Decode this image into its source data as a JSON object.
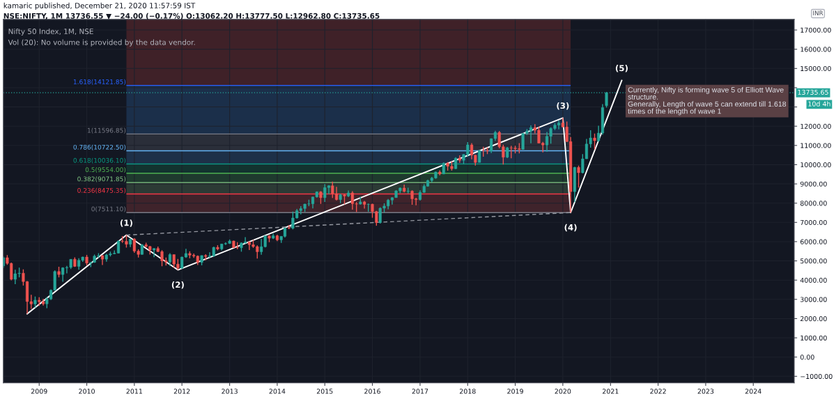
{
  "chart_data": {
    "type": "candlestick",
    "title": "kamaric published, December 21, 2020 11:57:59 IST",
    "subtitle": "NSE:NIFTY, 1M 13736.55 ▼ −24.00 (−0.17%) O:13062.20 H:13777.50 L:12962.80 C:13735.65",
    "x": [
      "2008-04",
      "2008-05",
      "2008-06",
      "2008-07",
      "2008-08",
      "2008-09",
      "2008-10",
      "2008-11",
      "2008-12",
      "2009-01",
      "2009-02",
      "2009-03",
      "2009-04",
      "2009-05",
      "2009-06",
      "2009-07",
      "2009-08",
      "2009-09",
      "2009-10",
      "2009-11",
      "2009-12",
      "2010-01",
      "2010-02",
      "2010-03",
      "2010-04",
      "2010-05",
      "2010-06",
      "2010-07",
      "2010-08",
      "2010-09",
      "2010-10",
      "2010-11",
      "2010-12",
      "2011-01",
      "2011-02",
      "2011-03",
      "2011-04",
      "2011-05",
      "2011-06",
      "2011-07",
      "2011-08",
      "2011-09",
      "2011-10",
      "2011-11",
      "2011-12",
      "2012-01",
      "2012-02",
      "2012-03",
      "2012-04",
      "2012-05",
      "2012-06",
      "2012-07",
      "2012-08",
      "2012-09",
      "2012-10",
      "2012-11",
      "2012-12",
      "2013-01",
      "2013-02",
      "2013-03",
      "2013-04",
      "2013-05",
      "2013-06",
      "2013-07",
      "2013-08",
      "2013-09",
      "2013-10",
      "2013-11",
      "2013-12",
      "2014-01",
      "2014-02",
      "2014-03",
      "2014-04",
      "2014-05",
      "2014-06",
      "2014-07",
      "2014-08",
      "2014-09",
      "2014-10",
      "2014-11",
      "2014-12",
      "2015-01",
      "2015-02",
      "2015-03",
      "2015-04",
      "2015-05",
      "2015-06",
      "2015-07",
      "2015-08",
      "2015-09",
      "2015-10",
      "2015-11",
      "2015-12",
      "2016-01",
      "2016-02",
      "2016-03",
      "2016-04",
      "2016-05",
      "2016-06",
      "2016-07",
      "2016-08",
      "2016-09",
      "2016-10",
      "2016-11",
      "2016-12",
      "2017-01",
      "2017-02",
      "2017-03",
      "2017-04",
      "2017-05",
      "2017-06",
      "2017-07",
      "2017-08",
      "2017-09",
      "2017-10",
      "2017-11",
      "2017-12",
      "2018-01",
      "2018-02",
      "2018-03",
      "2018-04",
      "2018-05",
      "2018-06",
      "2018-07",
      "2018-08",
      "2018-09",
      "2018-10",
      "2018-11",
      "2018-12",
      "2019-01",
      "2019-02",
      "2019-03",
      "2019-04",
      "2019-05",
      "2019-06",
      "2019-07",
      "2019-08",
      "2019-09",
      "2019-10",
      "2019-11",
      "2019-12",
      "2020-01",
      "2020-02",
      "2020-03",
      "2020-04",
      "2020-05",
      "2020-06",
      "2020-07",
      "2020-08",
      "2020-09",
      "2020-10",
      "2020-11",
      "2020-12"
    ],
    "ohlc": [
      [
        4739,
        5230,
        4628,
        5165
      ],
      [
        5165,
        5298,
        4797,
        4870
      ],
      [
        4870,
        4908,
        3991,
        4040
      ],
      [
        4040,
        4540,
        3790,
        4333
      ],
      [
        4333,
        4649,
        4147,
        4360
      ],
      [
        4360,
        4558,
        3715,
        3921
      ],
      [
        3921,
        3951,
        2252,
        2885
      ],
      [
        2885,
        3240,
        2502,
        2755
      ],
      [
        2755,
        3147,
        2570,
        2959
      ],
      [
        2959,
        3110,
        2661,
        2874
      ],
      [
        2874,
        3030,
        2677,
        2763
      ],
      [
        2763,
        3123,
        2539,
        3021
      ],
      [
        3021,
        3518,
        2966,
        3474
      ],
      [
        3474,
        4509,
        3470,
        4449
      ],
      [
        4449,
        4693,
        4143,
        4291
      ],
      [
        4291,
        4669,
        3918,
        4636
      ],
      [
        4636,
        4744,
        4353,
        4662
      ],
      [
        4662,
        5088,
        4576,
        5084
      ],
      [
        5084,
        5181,
        4687,
        4712
      ],
      [
        4712,
        5138,
        4538,
        5033
      ],
      [
        5033,
        5222,
        4944,
        5201
      ],
      [
        5201,
        5311,
        4767,
        4882
      ],
      [
        4882,
        4938,
        4676,
        4922
      ],
      [
        4922,
        5330,
        4900,
        5249
      ],
      [
        5249,
        5400,
        5161,
        5278
      ],
      [
        5278,
        5294,
        4786,
        5087
      ],
      [
        5087,
        5366,
        4961,
        5313
      ],
      [
        5313,
        5478,
        5225,
        5368
      ],
      [
        5368,
        5549,
        5349,
        5402
      ],
      [
        5402,
        6073,
        5380,
        6030
      ],
      [
        6030,
        6285,
        5937,
        6018
      ],
      [
        6018,
        6338,
        5690,
        5863
      ],
      [
        5863,
        6147,
        5721,
        6135
      ],
      [
        6135,
        6182,
        5417,
        5506
      ],
      [
        5506,
        5599,
        5178,
        5333
      ],
      [
        5333,
        5872,
        5320,
        5834
      ],
      [
        5834,
        5945,
        5693,
        5750
      ],
      [
        5750,
        5775,
        5329,
        5560
      ],
      [
        5560,
        5657,
        5196,
        5647
      ],
      [
        5647,
        5740,
        5453,
        5482
      ],
      [
        5482,
        5552,
        4720,
        5001
      ],
      [
        5001,
        5170,
        4758,
        4943
      ],
      [
        4943,
        5399,
        4728,
        5326
      ],
      [
        5326,
        5327,
        4640,
        4832
      ],
      [
        4832,
        5099,
        4531,
        4624
      ],
      [
        4624,
        5217,
        4588,
        5199
      ],
      [
        5199,
        5630,
        5159,
        5385
      ],
      [
        5385,
        5499,
        5136,
        5296
      ],
      [
        5296,
        5379,
        5154,
        5248
      ],
      [
        5248,
        5279,
        4789,
        4924
      ],
      [
        4924,
        5286,
        4770,
        5279
      ],
      [
        5279,
        5349,
        5032,
        5230
      ],
      [
        5230,
        5448,
        5164,
        5259
      ],
      [
        5259,
        5735,
        5215,
        5703
      ],
      [
        5703,
        5815,
        5549,
        5620
      ],
      [
        5620,
        5885,
        5548,
        5880
      ],
      [
        5880,
        5965,
        5823,
        5905
      ],
      [
        5905,
        6111,
        5880,
        6035
      ],
      [
        6035,
        6053,
        5671,
        5693
      ],
      [
        5693,
        5971,
        5605,
        5683
      ],
      [
        5683,
        5962,
        5477,
        5930
      ],
      [
        5930,
        6230,
        5910,
        5986
      ],
      [
        5986,
        6011,
        5566,
        5842
      ],
      [
        5842,
        6093,
        5675,
        5742
      ],
      [
        5742,
        5808,
        5119,
        5472
      ],
      [
        5472,
        6142,
        5318,
        5735
      ],
      [
        5735,
        6309,
        5700,
        6299
      ],
      [
        6299,
        6342,
        5972,
        6176
      ],
      [
        6176,
        6415,
        6130,
        6304
      ],
      [
        6304,
        6358,
        6027,
        6090
      ],
      [
        6090,
        6282,
        5933,
        6277
      ],
      [
        6277,
        6730,
        6212,
        6704
      ],
      [
        6704,
        6869,
        6650,
        6696
      ],
      [
        6696,
        7563,
        6638,
        7230
      ],
      [
        7230,
        7700,
        7200,
        7611
      ],
      [
        7611,
        7841,
        7422,
        7721
      ],
      [
        7721,
        7968,
        7540,
        7954
      ],
      [
        7954,
        8180,
        7841,
        7965
      ],
      [
        7965,
        8331,
        7724,
        8322
      ],
      [
        8322,
        8617,
        8290,
        8588
      ],
      [
        8588,
        8627,
        7961,
        8283
      ],
      [
        8283,
        8997,
        8065,
        8809
      ],
      [
        8809,
        8941,
        8470,
        8902
      ],
      [
        8902,
        9119,
        8270,
        8491
      ],
      [
        8491,
        8845,
        8145,
        8182
      ],
      [
        8182,
        8490,
        7997,
        8434
      ],
      [
        8434,
        8467,
        7940,
        8369
      ],
      [
        8369,
        8655,
        8315,
        8533
      ],
      [
        8533,
        8622,
        7667,
        7971
      ],
      [
        7971,
        8055,
        7540,
        7949
      ],
      [
        7949,
        8336,
        7930,
        8066
      ],
      [
        8066,
        8116,
        7714,
        7935
      ],
      [
        7935,
        7979,
        7551,
        7946
      ],
      [
        7946,
        7973,
        7241,
        7564
      ],
      [
        7564,
        7600,
        6826,
        6987
      ],
      [
        6987,
        7777,
        6940,
        7738
      ],
      [
        7738,
        7992,
        7517,
        7850
      ],
      [
        7850,
        8213,
        7678,
        8160
      ],
      [
        8160,
        8309,
        7927,
        8288
      ],
      [
        8288,
        8675,
        8287,
        8639
      ],
      [
        8639,
        8819,
        8519,
        8786
      ],
      [
        8786,
        8968,
        8555,
        8611
      ],
      [
        8611,
        8807,
        8506,
        8626
      ],
      [
        8626,
        8669,
        7916,
        8224
      ],
      [
        8224,
        8274,
        7893,
        8186
      ],
      [
        8186,
        8672,
        8133,
        8561
      ],
      [
        8561,
        8982,
        8537,
        8880
      ],
      [
        8880,
        9218,
        8860,
        9174
      ],
      [
        9174,
        9367,
        9075,
        9304
      ],
      [
        9304,
        9649,
        9269,
        9621
      ],
      [
        9621,
        9709,
        9448,
        9521
      ],
      [
        9521,
        10115,
        9500,
        10077
      ],
      [
        10077,
        10138,
        9686,
        9918
      ],
      [
        9918,
        10179,
        9688,
        9789
      ],
      [
        9789,
        10384,
        9775,
        10335
      ],
      [
        10335,
        10490,
        10094,
        10227
      ],
      [
        10227,
        10553,
        10033,
        10531
      ],
      [
        10531,
        11172,
        10404,
        11028
      ],
      [
        11028,
        11118,
        10276,
        10493
      ],
      [
        10493,
        10525,
        9952,
        10114
      ],
      [
        10114,
        10759,
        10112,
        10739
      ],
      [
        10739,
        10929,
        10418,
        10736
      ],
      [
        10736,
        10893,
        10550,
        10714
      ],
      [
        10714,
        11366,
        10604,
        11357
      ],
      [
        11357,
        11760,
        11234,
        11681
      ],
      [
        11681,
        11752,
        10850,
        10930
      ],
      [
        10930,
        11035,
        10005,
        10387
      ],
      [
        10387,
        10922,
        10341,
        10877
      ],
      [
        10877,
        10985,
        10333,
        10863
      ],
      [
        10863,
        10988,
        10584,
        10831
      ],
      [
        10831,
        11118,
        10586,
        10793
      ],
      [
        10793,
        11630,
        10780,
        11624
      ],
      [
        11624,
        11856,
        11549,
        11748
      ],
      [
        11748,
        12041,
        11108,
        11923
      ],
      [
        11923,
        12103,
        11625,
        11789
      ],
      [
        11789,
        11982,
        11107,
        11118
      ],
      [
        11118,
        11182,
        10637,
        11023
      ],
      [
        11023,
        11695,
        10670,
        11474
      ],
      [
        11474,
        11945,
        11090,
        11877
      ],
      [
        11877,
        12158,
        11802,
        12056
      ],
      [
        12056,
        12294,
        11832,
        12168
      ],
      [
        12168,
        12430,
        11929,
        11962
      ],
      [
        11962,
        12246,
        11175,
        11202
      ],
      [
        11202,
        11433,
        7511,
        8598
      ],
      [
        8598,
        9890,
        8055,
        9860
      ],
      [
        9860,
        9951,
        8807,
        9580
      ],
      [
        9580,
        10554,
        9544,
        10302
      ],
      [
        10302,
        11341,
        10300,
        11073
      ],
      [
        11073,
        11794,
        10883,
        11388
      ],
      [
        11388,
        11618,
        10790,
        11248
      ],
      [
        11248,
        12025,
        11185,
        11642
      ],
      [
        11642,
        13146,
        11557,
        12969
      ],
      [
        13062.2,
        13777.5,
        12962.8,
        13735.65
      ]
    ],
    "colors": [
      "#26a69a",
      "#ef5350",
      "#ef5350",
      "#26a69a",
      "#26a69a",
      "#ef5350",
      "#ef5350",
      "#ef5350",
      "#26a69a",
      "#ef5350",
      "#ef5350",
      "#26a69a",
      "#26a69a",
      "#26a69a",
      "#ef5350",
      "#26a69a",
      "#26a69a",
      "#26a69a",
      "#ef5350",
      "#26a69a",
      "#26a69a",
      "#ef5350",
      "#26a69a",
      "#26a69a",
      "#26a69a",
      "#ef5350",
      "#26a69a",
      "#26a69a",
      "#26a69a",
      "#26a69a",
      "#ef5350",
      "#ef5350",
      "#26a69a",
      "#ef5350",
      "#ef5350",
      "#26a69a",
      "#ef5350",
      "#ef5350",
      "#26a69a",
      "#ef5350",
      "#ef5350",
      "#ef5350",
      "#26a69a",
      "#ef5350",
      "#ef5350",
      "#26a69a",
      "#26a69a",
      "#ef5350",
      "#ef5350",
      "#ef5350",
      "#26a69a",
      "#ef5350",
      "#26a69a",
      "#26a69a",
      "#ef5350",
      "#26a69a",
      "#26a69a",
      "#26a69a",
      "#ef5350",
      "#ef5350",
      "#26a69a",
      "#26a69a",
      "#ef5350",
      "#ef5350",
      "#ef5350",
      "#26a69a",
      "#26a69a",
      "#ef5350",
      "#26a69a",
      "#ef5350",
      "#26a69a",
      "#26a69a",
      "#ef5350",
      "#26a69a",
      "#26a69a",
      "#26a69a",
      "#26a69a",
      "#26a69a",
      "#26a69a",
      "#26a69a",
      "#ef5350",
      "#26a69a",
      "#26a69a",
      "#ef5350",
      "#ef5350",
      "#26a69a",
      "#ef5350",
      "#26a69a",
      "#ef5350",
      "#ef5350",
      "#26a69a",
      "#ef5350",
      "#26a69a",
      "#ef5350",
      "#ef5350",
      "#26a69a",
      "#26a69a",
      "#26a69a",
      "#26a69a",
      "#26a69a",
      "#26a69a",
      "#ef5350",
      "#26a69a",
      "#ef5350",
      "#ef5350",
      "#26a69a",
      "#26a69a",
      "#26a69a",
      "#26a69a",
      "#26a69a",
      "#ef5350",
      "#26a69a",
      "#ef5350",
      "#ef5350",
      "#26a69a",
      "#ef5350",
      "#26a69a",
      "#26a69a",
      "#ef5350",
      "#ef5350",
      "#26a69a",
      "#ef5350",
      "#ef5350",
      "#26a69a",
      "#26a69a",
      "#ef5350",
      "#ef5350",
      "#26a69a",
      "#ef5350",
      "#ef5350",
      "#ef5350",
      "#26a69a",
      "#26a69a",
      "#26a69a",
      "#ef5350",
      "#ef5350",
      "#ef5350",
      "#26a69a",
      "#26a69a",
      "#26a69a",
      "#26a69a",
      "#ef5350",
      "#ef5350",
      "#ef5350",
      "#26a69a",
      "#ef5350",
      "#26a69a",
      "#26a69a",
      "#26a69a",
      "#ef5350",
      "#26a69a",
      "#26a69a",
      "#26a69a"
    ],
    "series": [
      {
        "type": "line",
        "color": "#ffffff",
        "line_style": "solid",
        "x": [
          "2008-10",
          "2010-11",
          "2011-12",
          "2020-01",
          "2020-03",
          "2021-03-28"
        ],
        "values": [
          2250,
          6340,
          4530,
          12430,
          7510,
          14380
        ]
      },
      {
        "type": "line",
        "color": "#9598a1",
        "line_style": "dashed",
        "x": [
          "2010-11",
          "2020-03"
        ],
        "values": [
          6340,
          7510
        ]
      }
    ],
    "ref_lines": [
      {
        "axis": "y",
        "value": 7511.1,
        "label": "0(7511.10)",
        "color": "#787b86"
      },
      {
        "axis": "y",
        "value": 8475.35,
        "label": "0.236(8475.35)",
        "color": "#f23645"
      },
      {
        "axis": "y",
        "value": 9071.85,
        "label": "0.382(9071.85)",
        "color": "#81c784"
      },
      {
        "axis": "y",
        "value": 9554.0,
        "label": "0.5(9554.00)",
        "color": "#4caf50"
      },
      {
        "axis": "y",
        "value": 10036.1,
        "label": "0.618(10036.10)",
        "color": "#089981"
      },
      {
        "axis": "y",
        "value": 10722.5,
        "label": "0.786(10722.50)",
        "color": "#64b5f6"
      },
      {
        "axis": "y",
        "value": 11596.85,
        "label": "1(11596.85)",
        "color": "#787b86"
      },
      {
        "axis": "y",
        "value": 14121.85,
        "label": "1.618(14121.85)",
        "color": "#2962ff"
      },
      {
        "axis": "y",
        "value": 13735.65,
        "label": "13735.65",
        "color": "#26a69a",
        "line_style": "dotted"
      }
    ],
    "bands": [
      {
        "axis": "y",
        "from": 7511.1,
        "to": 8475.35,
        "color": "#3f232b"
      },
      {
        "axis": "y",
        "from": 8475.35,
        "to": 9071.85,
        "color": "#2c3a35"
      },
      {
        "axis": "y",
        "from": 9071.85,
        "to": 9554.0,
        "color": "#1e3a2e"
      },
      {
        "axis": "y",
        "from": 9554.0,
        "to": 10036.1,
        "color": "#12332f"
      },
      {
        "axis": "y",
        "from": 10036.1,
        "to": 10722.5,
        "color": "#1d3048"
      },
      {
        "axis": "y",
        "from": 10722.5,
        "to": 11596.85,
        "color": "#2a2e39"
      },
      {
        "axis": "y",
        "from": 11596.85,
        "to": 14121.85,
        "color": "#1b2f4a"
      },
      {
        "axis": "y",
        "from": 14121.85,
        "to": 17550,
        "color": "#3f2128"
      }
    ],
    "annotations": [
      "Nifty 50 Index, 1M, NSE",
      "Vol (20): No volume is provided by the data vendor.",
      "INR",
      "10d 4h",
      "Currently, Nifty is forming wave 5 of Elliott Wave\nstructure.\nGenerally, Length of wave 5 can extend till 1.618\ntimes of the length of wave 1",
      {
        "text": "(1)",
        "x": "2010-11",
        "y": 6340
      },
      {
        "text": "(2)",
        "x": "2011-12",
        "y": 4530
      },
      {
        "text": "(3)",
        "x": "2020-01",
        "y": 12430
      },
      {
        "text": "(4)",
        "x": "2020-03",
        "y": 7510
      },
      {
        "text": "(5)",
        "x": "2021-03-28",
        "y": 14380
      }
    ],
    "xlim": [
      "2008-04-01",
      "2024-11-10"
    ],
    "xticks": [
      {
        "value": "2009-01",
        "label": "2009"
      },
      {
        "value": "2010-01",
        "label": "2010"
      },
      {
        "value": "2011-01",
        "label": "2011"
      },
      {
        "value": "2012-01",
        "label": "2012"
      },
      {
        "value": "2013-01",
        "label": "2013"
      },
      {
        "value": "2014-01",
        "label": "2014"
      },
      {
        "value": "2015-01",
        "label": "2015"
      },
      {
        "value": "2016-01",
        "label": "2016"
      },
      {
        "value": "2017-01",
        "label": "2017"
      },
      {
        "value": "2018-01",
        "label": "2018"
      },
      {
        "value": "2019-01",
        "label": "2019"
      },
      {
        "value": "2020-01",
        "label": "2020"
      },
      {
        "value": "2021-01",
        "label": "2021"
      },
      {
        "value": "2022-01",
        "label": "2022"
      },
      {
        "value": "2023-01",
        "label": "2023"
      },
      {
        "value": "2024-01",
        "label": "2024"
      }
    ],
    "ylim": [
      -1340,
      17550
    ],
    "yticks": [
      {
        "value": -1000,
        "label": "−1000.00"
      },
      {
        "value": 0,
        "label": "0.00"
      },
      {
        "value": 1000,
        "label": "1000.00"
      },
      {
        "value": 2000,
        "label": "2000.00"
      },
      {
        "value": 3000,
        "label": "3000.00"
      },
      {
        "value": 4000,
        "label": "4000.00"
      },
      {
        "value": 5000,
        "label": "5000.00"
      },
      {
        "value": 6000,
        "label": "6000.00"
      },
      {
        "value": 7000,
        "label": "7000.00"
      },
      {
        "value": 8000,
        "label": "8000.00"
      },
      {
        "value": 9000,
        "label": "9000.00"
      },
      {
        "value": 10000,
        "label": "10000.00"
      },
      {
        "value": 11000,
        "label": "11000.00"
      },
      {
        "value": 12000,
        "label": "12000.00"
      },
      {
        "value": 13000,
        "label": null
      },
      {
        "value": 14000,
        "label": null
      },
      {
        "value": 15000,
        "label": "15000.00"
      },
      {
        "value": 16000,
        "label": "16000.00"
      },
      {
        "value": 17000,
        "label": "17000.00"
      }
    ],
    "grid": true
  }
}
